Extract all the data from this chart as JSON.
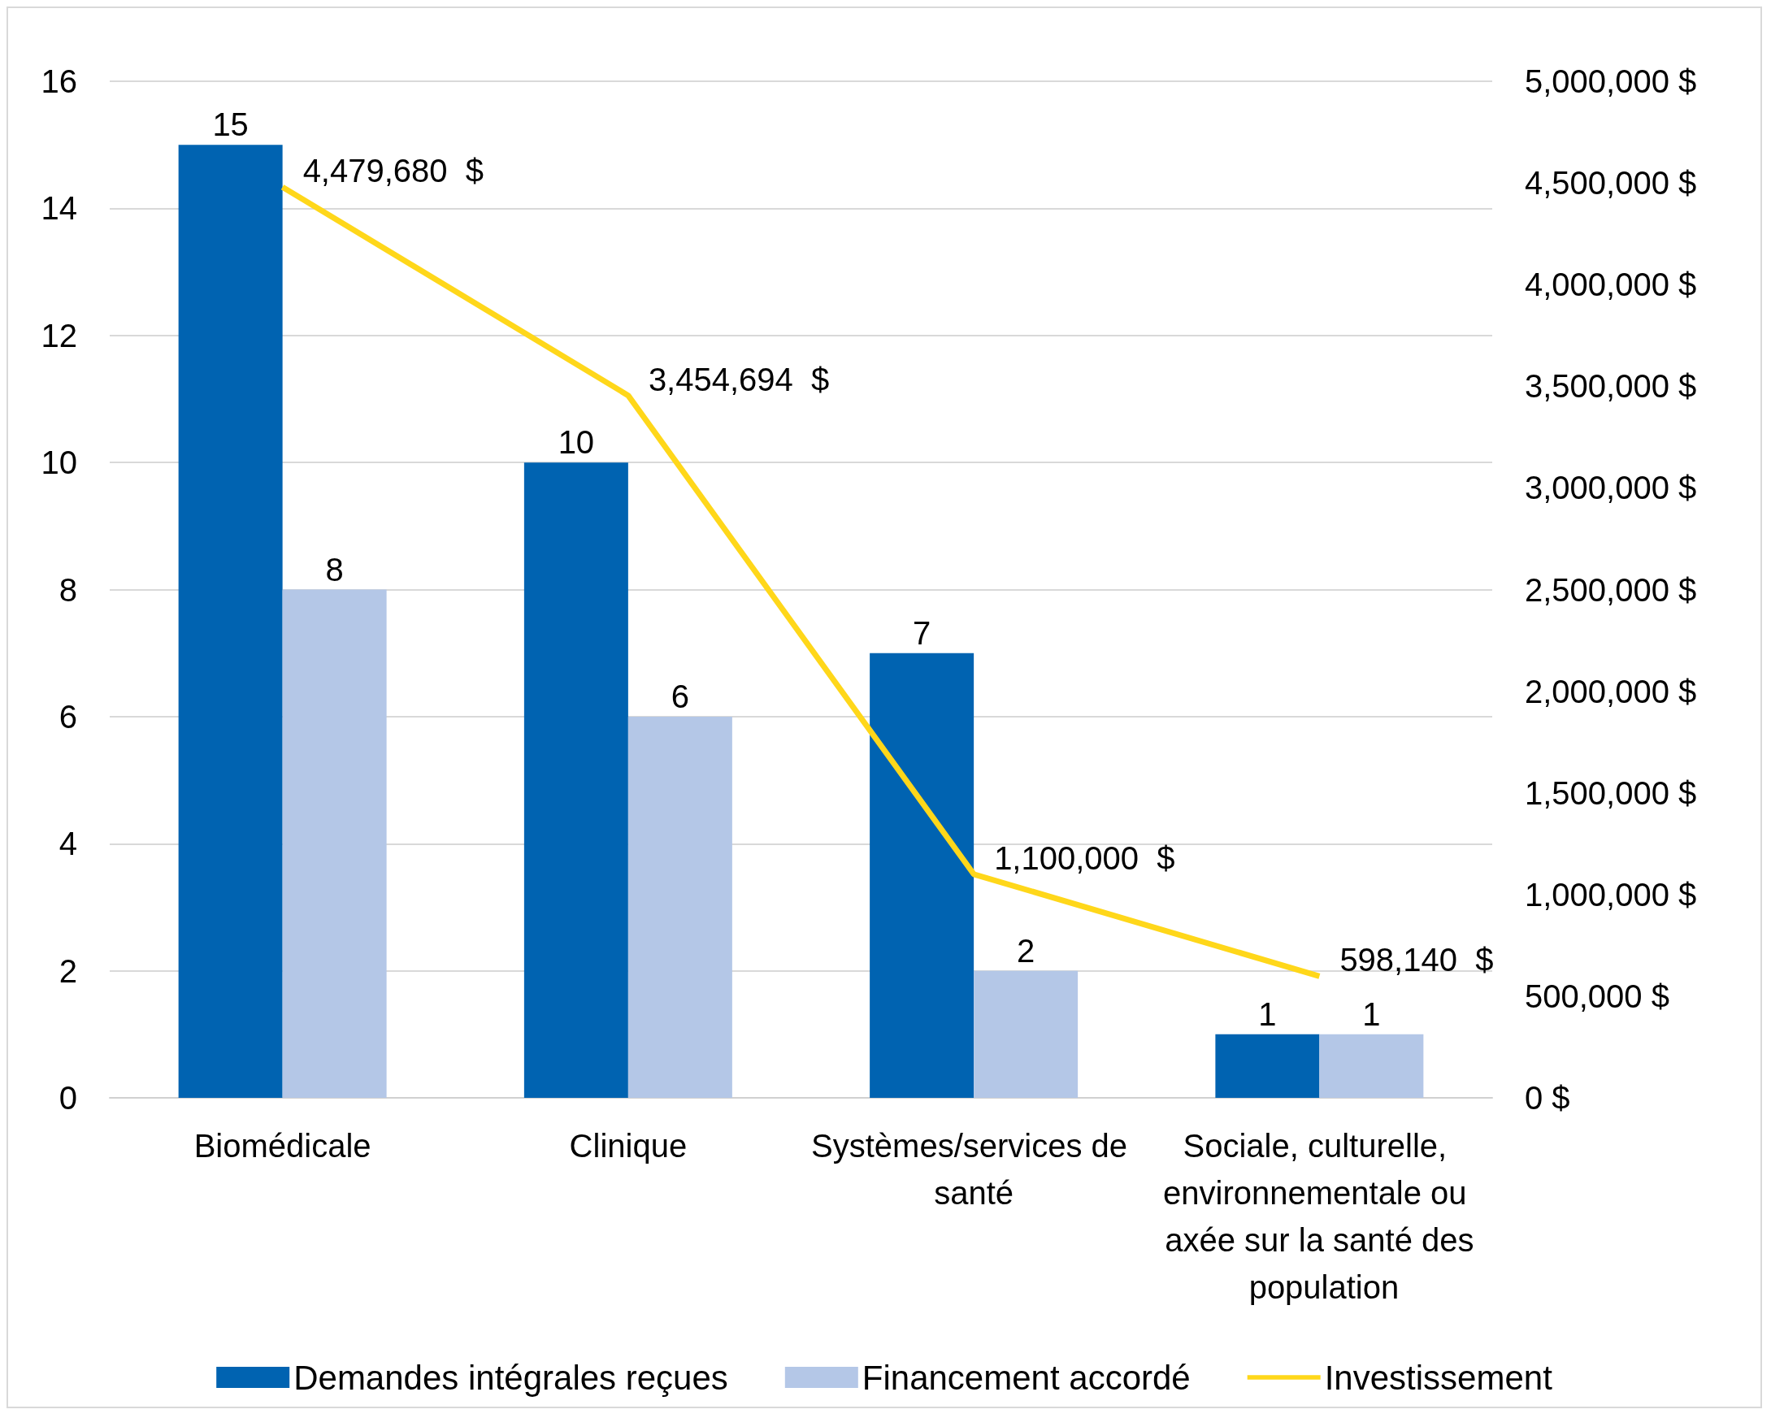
{
  "chart_data": {
    "type": "bar",
    "categories": [
      "Biomédicale",
      "Clinique",
      "Systèmes/services de santé",
      "Sociale, culturelle, environnementale ou axée sur la santé des population"
    ],
    "series": [
      {
        "name": "Demandes intégrales reçues",
        "color": "#0063b1",
        "values": [
          15,
          10,
          7,
          1
        ],
        "value_labels": [
          "15",
          "10",
          "7",
          "1"
        ]
      },
      {
        "name": "Financement accordé",
        "color": "#b4c7e7",
        "values": [
          8,
          6,
          2,
          1
        ],
        "value_labels": [
          "8",
          "6",
          "2",
          "1"
        ]
      },
      {
        "name": "Investissement",
        "type": "line",
        "axis": "y2",
        "color": "#ffd71a",
        "values": [
          4479680,
          3454694,
          1100000,
          598140
        ],
        "value_labels": [
          "4,479,680  $",
          "3,454,694  $",
          "1,100,000  $",
          "598,140  $"
        ]
      }
    ],
    "ylim": [
      0,
      16
    ],
    "yticks": [
      0,
      2,
      4,
      6,
      8,
      10,
      12,
      14,
      16
    ],
    "y2lim": [
      0,
      5000000
    ],
    "y2ticks": [
      {
        "value": 0,
        "label": "0 $"
      },
      {
        "value": 500000,
        "label": "500,000 $"
      },
      {
        "value": 1000000,
        "label": "1,000,000 $"
      },
      {
        "value": 1500000,
        "label": "1,500,000 $"
      },
      {
        "value": 2000000,
        "label": "2,000,000 $"
      },
      {
        "value": 2500000,
        "label": "2,500,000 $"
      },
      {
        "value": 3000000,
        "label": "3,000,000 $"
      },
      {
        "value": 3500000,
        "label": "3,500,000 $"
      },
      {
        "value": 4000000,
        "label": "4,000,000 $"
      },
      {
        "value": 4500000,
        "label": "4,500,000 $"
      },
      {
        "value": 5000000,
        "label": "5,000,000 $"
      }
    ],
    "grid": "y",
    "legend": "bottom",
    "marker": "none",
    "line_style": "solid"
  }
}
